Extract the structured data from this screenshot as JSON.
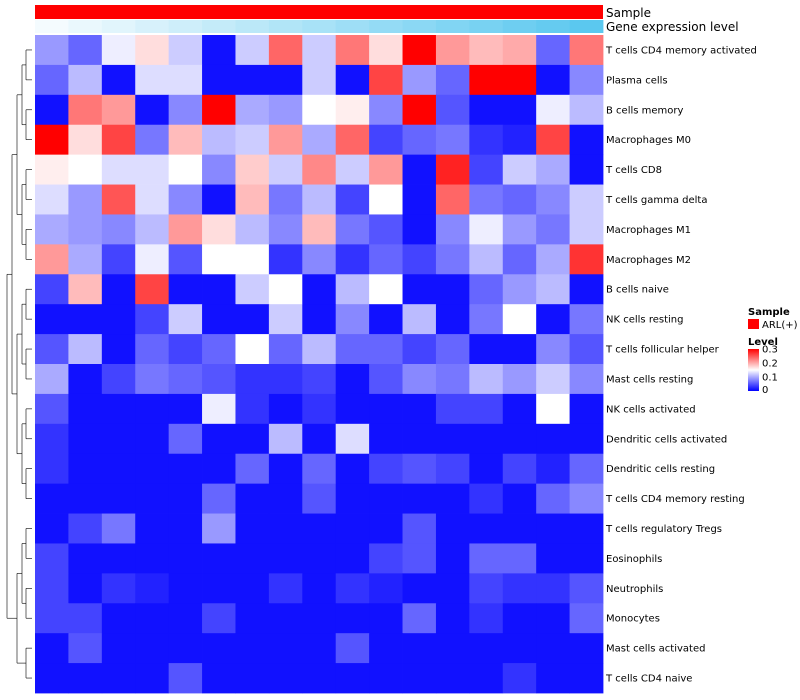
{
  "chart_data": {
    "type": "heatmap",
    "title": "",
    "annotations": [
      {
        "name": "Sample",
        "label": "Sample",
        "color": "#ff0000"
      },
      {
        "name": "Gene expression level",
        "label": "Gene expression level",
        "gradient": [
          "#f4fbfe",
          "#5bc8ef"
        ]
      }
    ],
    "rows": [
      "T cells CD4 memory activated",
      "Plasma cells",
      "B cells memory",
      "Macrophages M0",
      "T cells CD8",
      "T cells gamma delta",
      "Macrophages M1",
      "Macrophages M2",
      "B cells naive",
      "NK cells resting",
      "T cells follicular helper",
      "Mast cells resting",
      "NK cells activated",
      "Dendritic cells activated",
      "Dendritic cells resting",
      "T cells CD4 memory resting",
      "T cells regulatory  Tregs",
      "Eosinophils",
      "Neutrophils",
      "Monocytes",
      "Mast cells activated",
      "T cells CD4 naive"
    ],
    "n_cols": 17,
    "values": [
      [
        0.09,
        0.06,
        0.14,
        0.17,
        0.12,
        0.01,
        0.12,
        0.24,
        0.12,
        0.23,
        0.17,
        0.3,
        0.21,
        0.19,
        0.2,
        0.06,
        0.23
      ],
      [
        0.06,
        0.11,
        0.01,
        0.13,
        0.13,
        0.01,
        0.01,
        0.01,
        0.12,
        0.01,
        0.26,
        0.09,
        0.06,
        0.3,
        0.3,
        0.01,
        0.08
      ],
      [
        0.01,
        0.23,
        0.21,
        0.01,
        0.08,
        0.3,
        0.1,
        0.09,
        0.15,
        0.16,
        0.08,
        0.3,
        0.05,
        0.01,
        0.01,
        0.14,
        0.11
      ],
      [
        0.3,
        0.17,
        0.26,
        0.07,
        0.19,
        0.11,
        0.12,
        0.21,
        0.1,
        0.24,
        0.04,
        0.06,
        0.07,
        0.03,
        0.02,
        0.26,
        0.01
      ],
      [
        0.16,
        0.15,
        0.13,
        0.13,
        0.15,
        0.08,
        0.18,
        0.12,
        0.22,
        0.12,
        0.21,
        0.01,
        0.28,
        0.04,
        0.12,
        0.1,
        0.01
      ],
      [
        0.13,
        0.09,
        0.25,
        0.13,
        0.08,
        0.01,
        0.19,
        0.07,
        0.11,
        0.04,
        0.15,
        0.01,
        0.24,
        0.07,
        0.06,
        0.08,
        0.12
      ],
      [
        0.1,
        0.09,
        0.08,
        0.11,
        0.21,
        0.17,
        0.11,
        0.08,
        0.19,
        0.07,
        0.05,
        0.01,
        0.08,
        0.14,
        0.09,
        0.07,
        0.12
      ],
      [
        0.21,
        0.1,
        0.04,
        0.14,
        0.05,
        0.15,
        0.15,
        0.03,
        0.08,
        0.03,
        0.06,
        0.04,
        0.07,
        0.11,
        0.06,
        0.1,
        0.27
      ],
      [
        0.04,
        0.19,
        0.01,
        0.26,
        0.01,
        0.01,
        0.12,
        0.15,
        0.01,
        0.11,
        0.15,
        0.01,
        0.01,
        0.06,
        0.09,
        0.11,
        0.01
      ],
      [
        0.01,
        0.01,
        0.01,
        0.04,
        0.12,
        0.01,
        0.01,
        0.12,
        0.01,
        0.08,
        0.01,
        0.11,
        0.01,
        0.07,
        0.15,
        0.01,
        0.07
      ],
      [
        0.05,
        0.11,
        0.01,
        0.06,
        0.04,
        0.06,
        0.15,
        0.06,
        0.11,
        0.06,
        0.06,
        0.04,
        0.06,
        0.01,
        0.01,
        0.08,
        0.05
      ],
      [
        0.1,
        0.01,
        0.04,
        0.07,
        0.06,
        0.05,
        0.03,
        0.03,
        0.04,
        0.01,
        0.05,
        0.08,
        0.07,
        0.11,
        0.09,
        0.12,
        0.08
      ],
      [
        0.05,
        0.01,
        0.01,
        0.01,
        0.01,
        0.14,
        0.03,
        0.01,
        0.03,
        0.01,
        0.01,
        0.01,
        0.04,
        0.04,
        0.01,
        0.15,
        0.01
      ],
      [
        0.03,
        0.01,
        0.01,
        0.01,
        0.06,
        0.01,
        0.01,
        0.11,
        0.01,
        0.13,
        0.01,
        0.01,
        0.01,
        0.01,
        0.01,
        0.01,
        0.01
      ],
      [
        0.03,
        0.01,
        0.01,
        0.01,
        0.01,
        0.01,
        0.06,
        0.01,
        0.06,
        0.01,
        0.04,
        0.05,
        0.04,
        0.01,
        0.04,
        0.02,
        0.06
      ],
      [
        0.01,
        0.01,
        0.01,
        0.01,
        0.01,
        0.06,
        0.01,
        0.01,
        0.05,
        0.01,
        0.01,
        0.01,
        0.01,
        0.03,
        0.01,
        0.06,
        0.08
      ],
      [
        0.01,
        0.04,
        0.07,
        0.01,
        0.01,
        0.09,
        0.01,
        0.01,
        0.01,
        0.01,
        0.01,
        0.05,
        0.01,
        0.01,
        0.01,
        0.01,
        0.01
      ],
      [
        0.04,
        0.01,
        0.01,
        0.01,
        0.01,
        0.01,
        0.01,
        0.01,
        0.01,
        0.01,
        0.04,
        0.05,
        0.01,
        0.06,
        0.06,
        0.01,
        0.01
      ],
      [
        0.04,
        0.01,
        0.03,
        0.02,
        0.01,
        0.01,
        0.01,
        0.03,
        0.01,
        0.03,
        0.02,
        0.01,
        0.01,
        0.04,
        0.03,
        0.03,
        0.05
      ],
      [
        0.04,
        0.04,
        0.01,
        0.01,
        0.01,
        0.04,
        0.01,
        0.01,
        0.01,
        0.01,
        0.01,
        0.06,
        0.01,
        0.03,
        0.01,
        0.01,
        0.06
      ],
      [
        0.01,
        0.05,
        0.01,
        0.01,
        0.01,
        0.01,
        0.01,
        0.01,
        0.01,
        0.05,
        0.01,
        0.01,
        0.01,
        0.01,
        0.01,
        0.01,
        0.01
      ],
      [
        0.01,
        0.01,
        0.01,
        0.01,
        0.05,
        0.01,
        0.01,
        0.01,
        0.01,
        0.01,
        0.01,
        0.01,
        0.01,
        0.01,
        0.03,
        0.01,
        0.01
      ]
    ],
    "color_scale": {
      "low": "#0000ff",
      "mid": "#ffffff",
      "high": "#ff0000",
      "min": 0,
      "mid_value": 0.15,
      "max": 0.3
    },
    "legend": {
      "annotation_title": "Sample",
      "annotation_entry": "ARL(+)",
      "annotation_color": "#ff0000",
      "scale_title": "Level",
      "ticks": [
        {
          "value": 0.3,
          "label": "0.3"
        },
        {
          "value": 0.2,
          "label": "0.2"
        },
        {
          "value": 0.1,
          "label": "0.1"
        },
        {
          "value": 0,
          "label": "0"
        }
      ]
    },
    "row_dendrogram": true,
    "legend_position": "right"
  }
}
